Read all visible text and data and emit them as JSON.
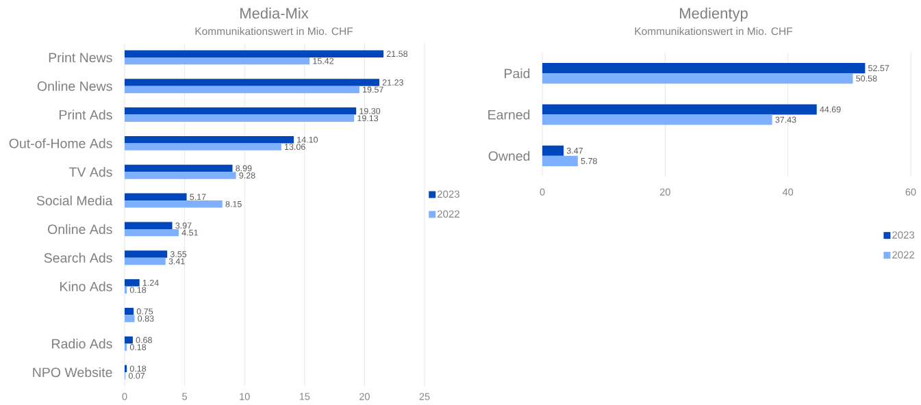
{
  "chart_data": [
    {
      "type": "bar",
      "orientation": "horizontal",
      "title": "Media-Mix",
      "subtitle": "Kommunikationswert in Mio. CHF",
      "categories": [
        "Print News",
        "Online News",
        "Print Ads",
        "Out-of-Home Ads",
        "TV Ads",
        "Social Media",
        "Online Ads",
        "Search Ads",
        "Kino Ads",
        null,
        "Radio Ads",
        "NPO Website"
      ],
      "series": [
        {
          "name": "2023",
          "color": "#0047bb",
          "values": [
            21.58,
            21.23,
            19.3,
            14.1,
            8.99,
            5.17,
            3.97,
            3.55,
            1.24,
            0.75,
            0.68,
            0.18
          ],
          "value_labels": [
            "21.58",
            "21.23",
            "19.30",
            "14.10",
            "8.99",
            "5.17",
            "3.97",
            "3.55",
            "1.24",
            "0.75",
            "0.68",
            "0.18"
          ]
        },
        {
          "name": "2022",
          "color": "#7fb0ff",
          "values": [
            15.42,
            19.57,
            19.13,
            13.06,
            9.28,
            8.15,
            4.51,
            3.41,
            0.18,
            0.83,
            0.18,
            0.07
          ],
          "value_labels": [
            "15.42",
            "19.57",
            "19.13",
            "13.06",
            "9.28",
            "8.15",
            "4.51",
            "3.41",
            "0.18",
            "0.83",
            "0.18",
            "0.07"
          ]
        }
      ],
      "xlim": [
        0,
        25
      ],
      "xticks": [
        0,
        5,
        10,
        15,
        20,
        25
      ],
      "grid": "x",
      "legend": "right"
    },
    {
      "type": "bar",
      "orientation": "horizontal",
      "title": "Medientyp",
      "subtitle": "Kommunikationswert in Mio. CHF",
      "categories": [
        "Paid",
        "Earned",
        "Owned"
      ],
      "series": [
        {
          "name": "2023",
          "color": "#0047bb",
          "values": [
            52.57,
            44.69,
            3.47
          ],
          "value_labels": [
            "52.57",
            "44.69",
            "3.47"
          ]
        },
        {
          "name": "2022",
          "color": "#7fb0ff",
          "values": [
            50.58,
            37.43,
            5.78
          ],
          "value_labels": [
            "50.58",
            "37.43",
            "5.78"
          ]
        }
      ],
      "xlim": [
        0,
        60
      ],
      "xticks": [
        0,
        20,
        40,
        60
      ],
      "grid": "x",
      "legend": "bottom right"
    }
  ]
}
